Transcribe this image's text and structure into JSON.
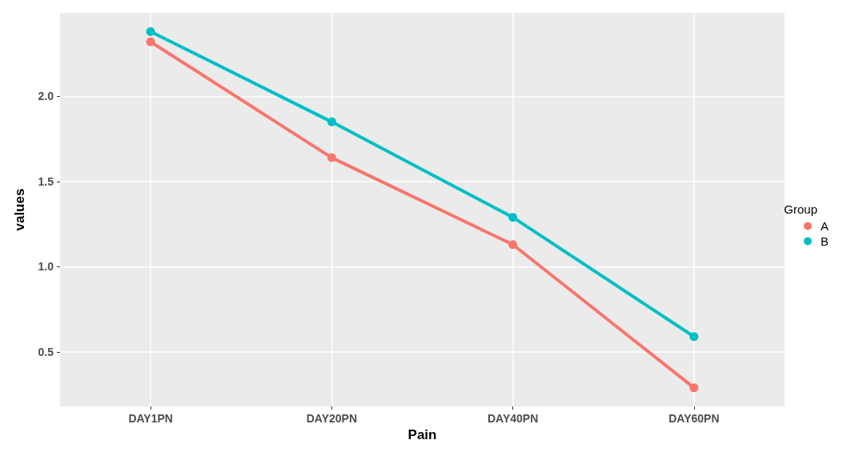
{
  "chart_data": {
    "type": "line",
    "xlabel": "Pain",
    "ylabel": "values",
    "legend_title": "Group",
    "categories": [
      "DAY1PN",
      "DAY20PN",
      "DAY40PN",
      "DAY60PN"
    ],
    "series": [
      {
        "name": "A",
        "color": "#f8766d",
        "values": [
          2.32,
          1.64,
          1.13,
          0.29
        ]
      },
      {
        "name": "B",
        "color": "#00bfc4",
        "values": [
          2.38,
          1.85,
          1.29,
          0.59
        ]
      }
    ],
    "ylim": [
      0.18,
      2.49
    ],
    "yticks": [
      0.5,
      {
        "value": 1,
        "label": "1.0"
      },
      1.5,
      {
        "value": 2,
        "label": "2.0"
      }
    ],
    "grid": true,
    "legend": "right",
    "marker": "circle",
    "line_style": "solid"
  }
}
